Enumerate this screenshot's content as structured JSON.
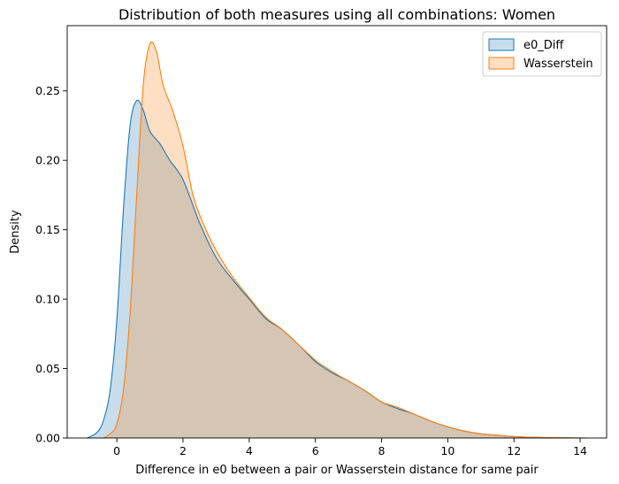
{
  "chart_data": {
    "type": "area",
    "title": "Distribution of both measures using all combinations: Women",
    "xlabel": "Difference in e0 between a pair or Wasserstein distance for same pair",
    "ylabel": "Density",
    "xlim": [
      -1.5,
      14.8
    ],
    "ylim": [
      0,
      0.297
    ],
    "xticks": [
      0,
      2,
      4,
      6,
      8,
      10,
      12,
      14
    ],
    "xtick_labels": [
      "0",
      "2",
      "4",
      "6",
      "8",
      "10",
      "12",
      "14"
    ],
    "yticks": [
      0.0,
      0.05,
      0.1,
      0.15,
      0.2,
      0.25
    ],
    "ytick_labels": [
      "0.00",
      "0.05",
      "0.10",
      "0.15",
      "0.20",
      "0.25"
    ],
    "legend_position": "top-right",
    "series": [
      {
        "name": "e0_Diff",
        "line_color": "#1f77b4",
        "fill_color": "#1f77b4",
        "fill_opacity": 0.25,
        "x": [
          -0.9,
          -0.6,
          -0.4,
          -0.2,
          0.0,
          0.2,
          0.4,
          0.6,
          0.8,
          1.0,
          1.3,
          1.6,
          2.0,
          2.5,
          3.0,
          3.5,
          4.0,
          4.5,
          5.0,
          5.5,
          6.0,
          6.5,
          7.0,
          7.5,
          8.0,
          8.5,
          9.0,
          9.5,
          10.0,
          10.5,
          11.0,
          11.5,
          12.0,
          13.0,
          14.2
        ],
        "y": [
          0.0,
          0.004,
          0.013,
          0.035,
          0.085,
          0.165,
          0.225,
          0.243,
          0.236,
          0.221,
          0.212,
          0.2,
          0.186,
          0.155,
          0.13,
          0.114,
          0.1,
          0.086,
          0.078,
          0.067,
          0.055,
          0.047,
          0.041,
          0.034,
          0.026,
          0.021,
          0.017,
          0.012,
          0.008,
          0.005,
          0.003,
          0.002,
          0.001,
          0.0003,
          0.0
        ]
      },
      {
        "name": "Wasserstein",
        "line_color": "#ff7f0e",
        "fill_color": "#ff7f0e",
        "fill_opacity": 0.25,
        "x": [
          -0.4,
          -0.2,
          0.0,
          0.2,
          0.4,
          0.6,
          0.8,
          1.0,
          1.2,
          1.4,
          1.7,
          2.0,
          2.3,
          2.6,
          3.0,
          3.5,
          4.0,
          4.5,
          5.0,
          5.5,
          6.0,
          6.5,
          7.0,
          7.5,
          8.0,
          8.5,
          9.0,
          9.5,
          10.0,
          10.5,
          11.0,
          11.5,
          12.0,
          13.0,
          14.2
        ],
        "y": [
          0.0,
          0.003,
          0.01,
          0.035,
          0.09,
          0.175,
          0.255,
          0.284,
          0.278,
          0.254,
          0.235,
          0.21,
          0.175,
          0.155,
          0.135,
          0.116,
          0.101,
          0.087,
          0.078,
          0.067,
          0.056,
          0.048,
          0.041,
          0.034,
          0.026,
          0.022,
          0.017,
          0.012,
          0.008,
          0.005,
          0.003,
          0.002,
          0.001,
          0.0003,
          0.0
        ]
      }
    ]
  }
}
